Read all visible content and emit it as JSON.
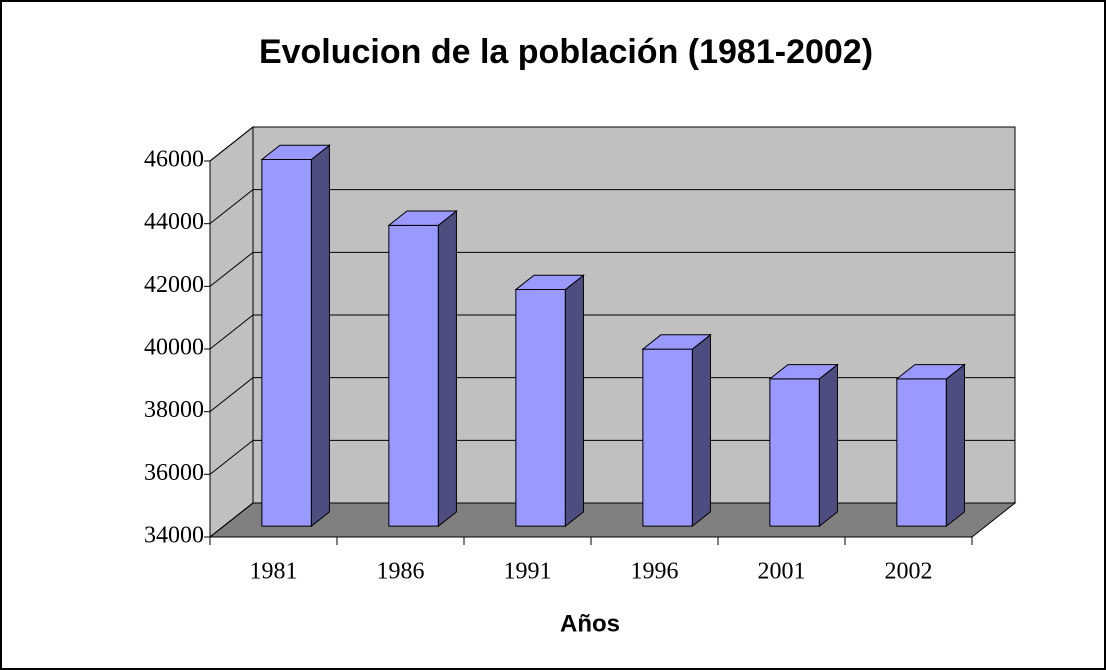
{
  "chart_data": {
    "type": "bar3d",
    "title": "Evolucion de la población (1981-2002)",
    "x_label": "Años",
    "categories": [
      "1981",
      "1986",
      "1991",
      "1996",
      "2001",
      "2002"
    ],
    "values": [
      45700,
      43600,
      41550,
      39650,
      38700,
      38700
    ],
    "color": "#9999ff",
    "ylim": [
      34000,
      46000
    ],
    "yticks": [
      34000,
      36000,
      38000,
      40000,
      42000,
      44000,
      46000
    ],
    "grid": true
  }
}
